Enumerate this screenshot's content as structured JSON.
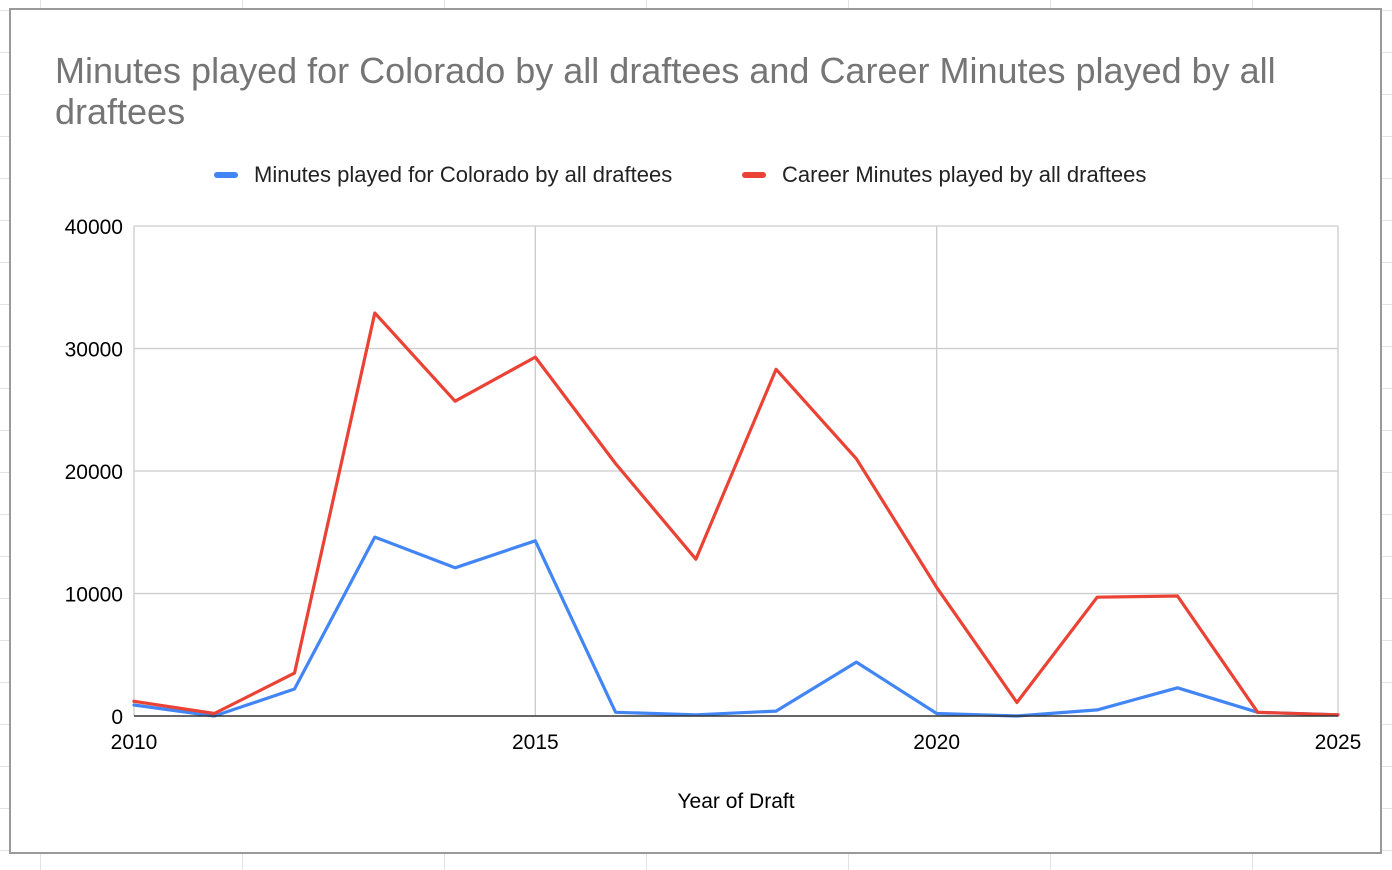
{
  "chart_data": {
    "type": "line",
    "title": "Minutes played for Colorado by all draftees and Career Minutes played by all draftees",
    "xlabel": "Year of Draft",
    "ylabel": "",
    "xlim": [
      2010,
      2025
    ],
    "ylim": [
      0,
      40000
    ],
    "x_ticks": [
      "2010",
      "2015",
      "2020",
      "2025"
    ],
    "y_ticks": [
      "0",
      "10000",
      "20000",
      "30000",
      "40000"
    ],
    "grid": true,
    "legend_position": "top",
    "x": [
      2010,
      2011,
      2012,
      2013,
      2014,
      2015,
      2016,
      2017,
      2018,
      2019,
      2020,
      2021,
      2022,
      2023,
      2024,
      2025
    ],
    "series": [
      {
        "name": "Minutes played for Colorado by all draftees",
        "color": "#4285f4",
        "values": [
          900,
          0,
          2200,
          14600,
          12100,
          14300,
          300,
          100,
          400,
          4400,
          200,
          0,
          500,
          2300,
          300,
          100
        ]
      },
      {
        "name": "Career Minutes played by all draftees",
        "color": "#ea4335",
        "values": [
          1200,
          200,
          3500,
          32900,
          25700,
          29300,
          20600,
          12800,
          28300,
          21000,
          10500,
          1100,
          9700,
          9800,
          300,
          100
        ]
      }
    ]
  }
}
